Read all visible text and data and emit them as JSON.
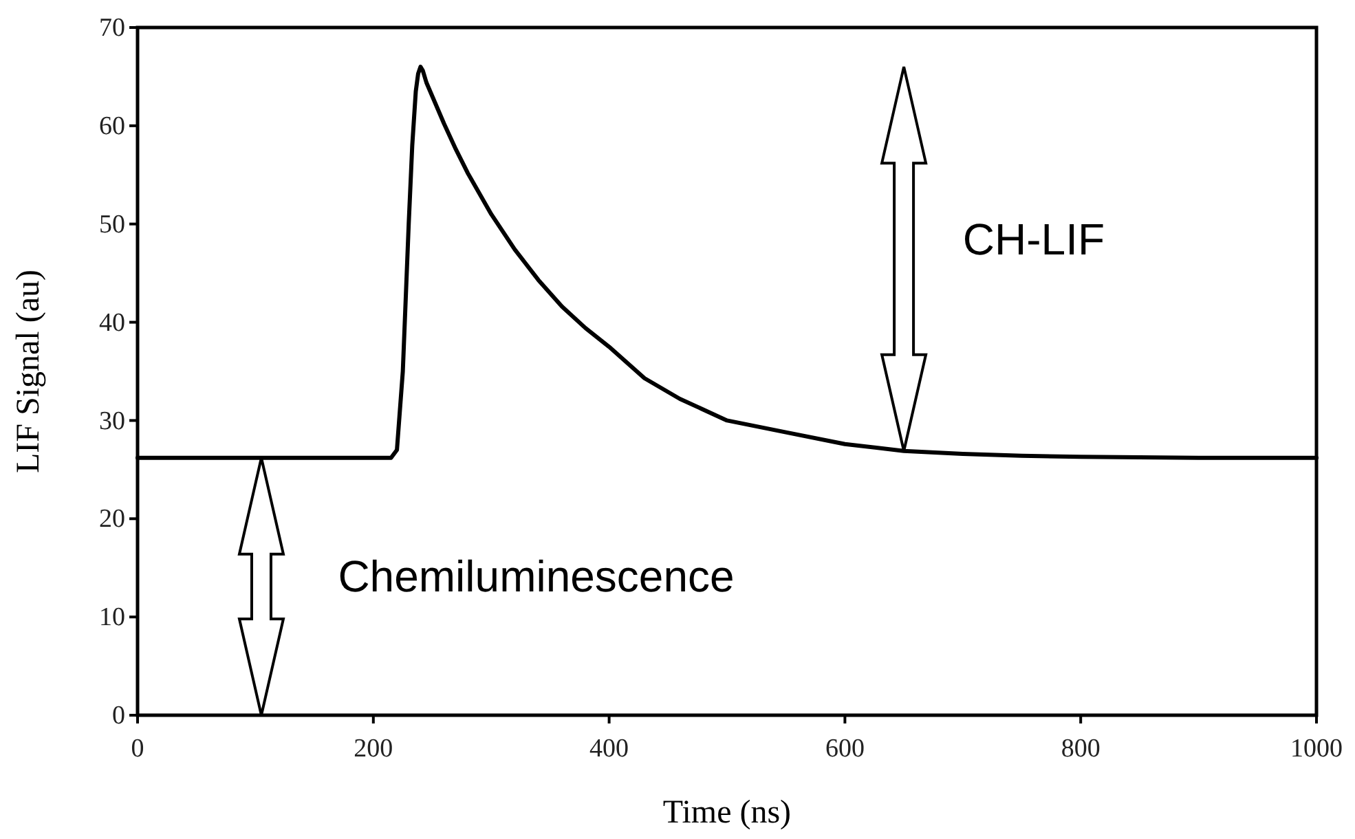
{
  "chart_data": {
    "type": "line",
    "xlabel": "Time (ns)",
    "ylabel": "LIF Signal (au)",
    "x": [
      0,
      100,
      200,
      215,
      220,
      225,
      230,
      233,
      236,
      238,
      240,
      242,
      245,
      250,
      260,
      270,
      280,
      300,
      320,
      340,
      360,
      380,
      400,
      430,
      460,
      500,
      550,
      600,
      650,
      700,
      750,
      800,
      900,
      1000
    ],
    "series": [
      {
        "color": "#000000",
        "values": [
          26.2,
          26.2,
          26.2,
          26.2,
          27,
          35,
          50,
          58,
          63.5,
          65.3,
          66,
          65.6,
          64.4,
          63,
          60.2,
          57.6,
          55.2,
          51,
          47.4,
          44.3,
          41.6,
          39.4,
          37.5,
          34.3,
          32.2,
          30,
          28.8,
          27.6,
          26.9,
          26.6,
          26.4,
          26.3,
          26.2,
          26.2
        ]
      }
    ],
    "xlim": [
      0,
      1000
    ],
    "xticks": [
      0,
      200,
      400,
      600,
      800,
      1000
    ],
    "ylim": [
      0,
      70
    ],
    "yticks": [
      0,
      10,
      20,
      30,
      40,
      50,
      60,
      70
    ],
    "marker": "none",
    "line_style": "solid",
    "annotations": [
      "Chemiluminescence",
      "CH-LIF"
    ]
  }
}
